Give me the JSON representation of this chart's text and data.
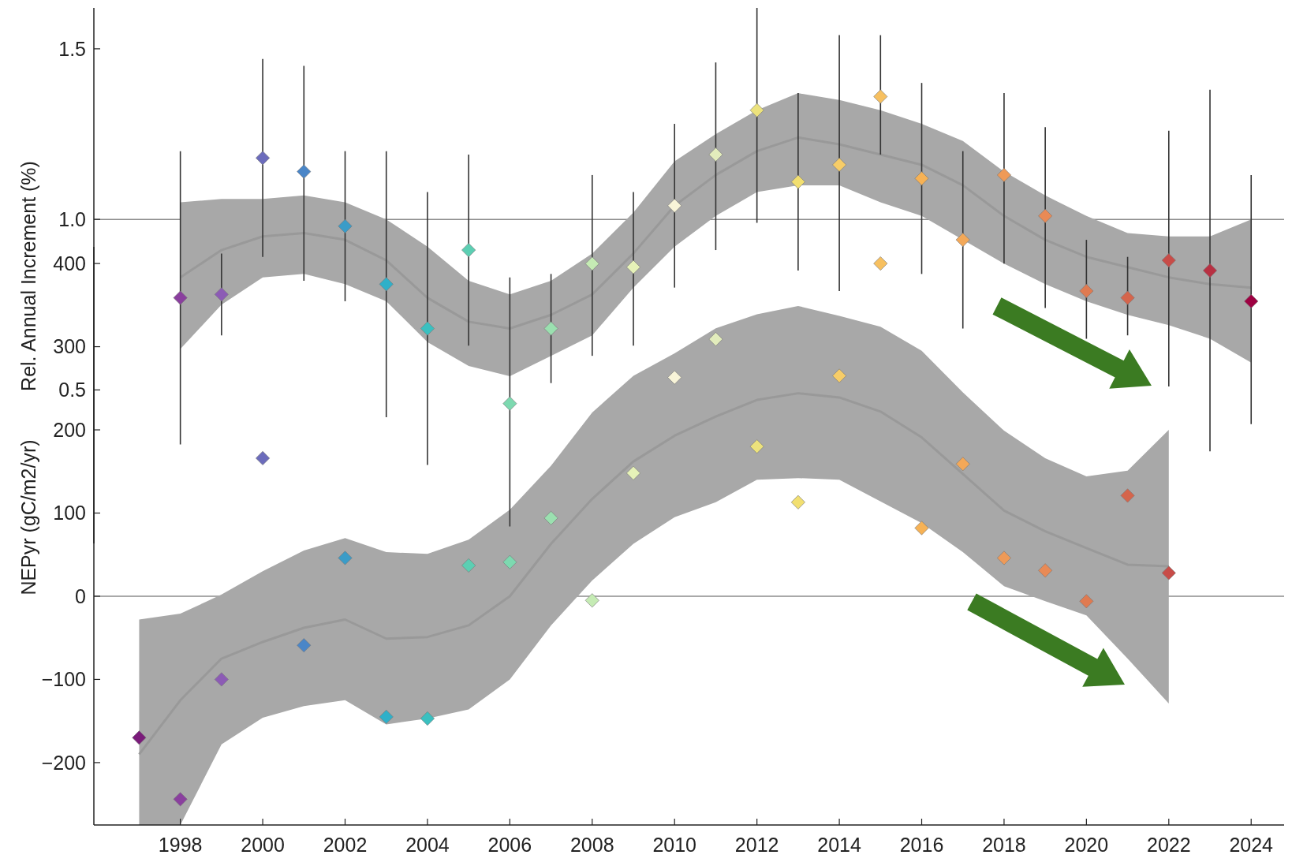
{
  "chart_data": [
    {
      "type": "scatter",
      "ylabel": "NEPyr (gC/m2/yr)",
      "xlim": [
        1995.9,
        2024.8
      ],
      "xticks": [
        1998,
        2000,
        2002,
        2004,
        2006,
        2008,
        2010,
        2012,
        2014,
        2016,
        2018,
        2020,
        2022,
        2024
      ],
      "ylim": [
        -275,
        420
      ],
      "yticks": [
        {
          "value": -200,
          "label": "−200"
        },
        {
          "value": -100,
          "label": "−100"
        },
        0,
        100,
        200,
        300,
        400
      ],
      "grid": false,
      "ref_lines": [
        {
          "axis": "y",
          "value": 0,
          "color": "#8c8c8c"
        }
      ],
      "series": [
        {
          "type": "line",
          "color": "#999999",
          "x": [
            1997,
            1998,
            1999,
            2000,
            2001,
            2002,
            2003,
            2004,
            2005,
            2006,
            2007,
            2008,
            2009,
            2010,
            2011,
            2012,
            2013,
            2014,
            2015,
            2016,
            2017,
            2018,
            2019,
            2020,
            2021,
            2022
          ],
          "values": [
            -190,
            -125,
            -75,
            -55,
            -38,
            -28,
            -51,
            -49,
            -35,
            0,
            63,
            117,
            162,
            193,
            216,
            236,
            244,
            239,
            222,
            191,
            147,
            103,
            78,
            58,
            38,
            36
          ],
          "lower": [
            -275,
            -275,
            -178,
            -146,
            -132,
            -125,
            -154,
            -147,
            -136,
            -100,
            -35,
            19,
            63,
            95,
            113,
            140,
            142,
            140,
            114,
            88,
            53,
            12,
            -6,
            -23,
            -75,
            -129
          ],
          "upper": [
            -28,
            -21,
            2,
            30,
            55,
            70,
            53,
            51,
            68,
            104,
            157,
            221,
            265,
            292,
            322,
            339,
            349,
            337,
            324,
            295,
            245,
            199,
            166,
            144,
            151,
            200
          ]
        },
        {
          "marker": "diamond",
          "x": [
            1997,
            1998,
            1999,
            2000,
            2001,
            2002,
            2003,
            2004,
            2005,
            2006,
            2007,
            2008,
            2009,
            2010,
            2011,
            2012,
            2013,
            2014,
            2015,
            2016,
            2017,
            2018,
            2019,
            2020,
            2021,
            2022
          ],
          "values": [
            -170,
            -244,
            -100,
            166,
            -59,
            46,
            -145,
            -147,
            37,
            41,
            94,
            -5,
            148,
            263,
            309,
            180,
            113,
            265,
            400,
            82,
            159,
            46,
            31,
            -6,
            121,
            28
          ],
          "colors": [
            "#7a1b7a",
            "#8a3f9e",
            "#8c5bb5",
            "#6c6cbc",
            "#4a86c8",
            "#3a9cc8",
            "#2fb0c9",
            "#3ac0c0",
            "#5ccfb3",
            "#7dd9b0",
            "#9be0b0",
            "#c5ebb4",
            "#e6f2b8",
            "#f8f4d8",
            "#e2ecbc",
            "#ece27c",
            "#f2df70",
            "#f7cd68",
            "#f7c060",
            "#f7b255",
            "#f3a858",
            "#ee9a58",
            "#e98a55",
            "#e07a50",
            "#d5654c",
            "#c84c48"
          ]
        }
      ]
    },
    {
      "type": "scatter",
      "ylabel": "Rel. Annual Increment (%)",
      "xlim": [
        1995.9,
        2024.8
      ],
      "tick_labels": "y",
      "ylim": [
        0.05,
        1.62
      ],
      "yticks": [
        0.5,
        {
          "value": 1,
          "label": "1.0"
        },
        1.5
      ],
      "grid": false,
      "ref_lines": [
        {
          "axis": "y",
          "value": 1,
          "color": "#8c8c8c"
        }
      ],
      "series": [
        {
          "type": "line",
          "color": "#999999",
          "x": [
            1998,
            1999,
            2000,
            2001,
            2002,
            2003,
            2004,
            2005,
            2006,
            2007,
            2008,
            2009,
            2010,
            2011,
            2012,
            2013,
            2014,
            2015,
            2016,
            2017,
            2018,
            2019,
            2020,
            2021,
            2022,
            2023,
            2024
          ],
          "values": [
            0.83,
            0.91,
            0.95,
            0.96,
            0.94,
            0.88,
            0.77,
            0.7,
            0.68,
            0.72,
            0.78,
            0.9,
            1.04,
            1.13,
            1.2,
            1.24,
            1.22,
            1.19,
            1.16,
            1.1,
            1.01,
            0.94,
            0.89,
            0.86,
            0.83,
            0.81,
            0.8
          ],
          "lower": [
            0.62,
            0.75,
            0.83,
            0.84,
            0.81,
            0.76,
            0.64,
            0.57,
            0.54,
            0.6,
            0.66,
            0.8,
            0.92,
            1.01,
            1.08,
            1.1,
            1.1,
            1.05,
            1.01,
            0.94,
            0.87,
            0.81,
            0.76,
            0.72,
            0.69,
            0.65,
            0.58
          ],
          "upper": [
            1.05,
            1.06,
            1.06,
            1.07,
            1.05,
            1.0,
            0.92,
            0.82,
            0.78,
            0.82,
            0.9,
            1.02,
            1.17,
            1.25,
            1.32,
            1.37,
            1.35,
            1.32,
            1.28,
            1.23,
            1.14,
            1.07,
            1.01,
            0.96,
            0.95,
            0.95,
            1.0
          ]
        },
        {
          "marker": "diamond",
          "x": [
            1998,
            1999,
            2000,
            2001,
            2002,
            2003,
            2004,
            2005,
            2006,
            2007,
            2008,
            2009,
            2010,
            2011,
            2012,
            2013,
            2014,
            2015,
            2016,
            2017,
            2018,
            2019,
            2020,
            2021,
            2022,
            2023,
            2024
          ],
          "values": [
            0.77,
            0.78,
            1.18,
            1.14,
            0.98,
            0.81,
            0.68,
            0.91,
            0.46,
            0.68,
            0.87,
            0.86,
            1.04,
            1.19,
            1.32,
            1.11,
            1.16,
            1.36,
            1.12,
            0.94,
            1.13,
            1.01,
            0.79,
            0.77,
            0.88,
            0.85,
            0.76
          ],
          "errors": [
            [
              0.34,
              1.2
            ],
            [
              0.66,
              0.9
            ],
            [
              0.89,
              1.47
            ],
            [
              0.82,
              1.45
            ],
            [
              0.76,
              1.2
            ],
            [
              0.42,
              1.2
            ],
            [
              0.28,
              1.08
            ],
            [
              0.63,
              1.19
            ],
            [
              0.1,
              0.83
            ],
            [
              0.52,
              0.84
            ],
            [
              0.6,
              1.13
            ],
            [
              0.63,
              1.08
            ],
            [
              0.8,
              1.28
            ],
            [
              0.91,
              1.46
            ],
            [
              0.99,
              1.62
            ],
            [
              0.85,
              1.37
            ],
            [
              0.79,
              1.54
            ],
            [
              1.19,
              1.54
            ],
            [
              0.84,
              1.4
            ],
            [
              0.68,
              1.2
            ],
            [
              0.87,
              1.37
            ],
            [
              0.74,
              1.27
            ],
            [
              0.65,
              0.94
            ],
            [
              0.66,
              0.89
            ],
            [
              0.51,
              1.26
            ],
            [
              0.32,
              1.38
            ],
            [
              0.4,
              1.13
            ]
          ],
          "colors": [
            "#8a3f9e",
            "#8c5bb5",
            "#6c6cbc",
            "#4a86c8",
            "#3a9cc8",
            "#2fb0c9",
            "#3ac0c0",
            "#5ccfb3",
            "#7dd9b0",
            "#9be0b0",
            "#c5ebb4",
            "#e6f2b8",
            "#f8f4d8",
            "#e2ecbc",
            "#ece27c",
            "#f2df70",
            "#f7cd68",
            "#f7c060",
            "#f7b255",
            "#f3a858",
            "#ee9a58",
            "#e98a55",
            "#e07a50",
            "#d5654c",
            "#c84c48",
            "#b83042",
            "#9e0142"
          ]
        }
      ]
    }
  ]
}
